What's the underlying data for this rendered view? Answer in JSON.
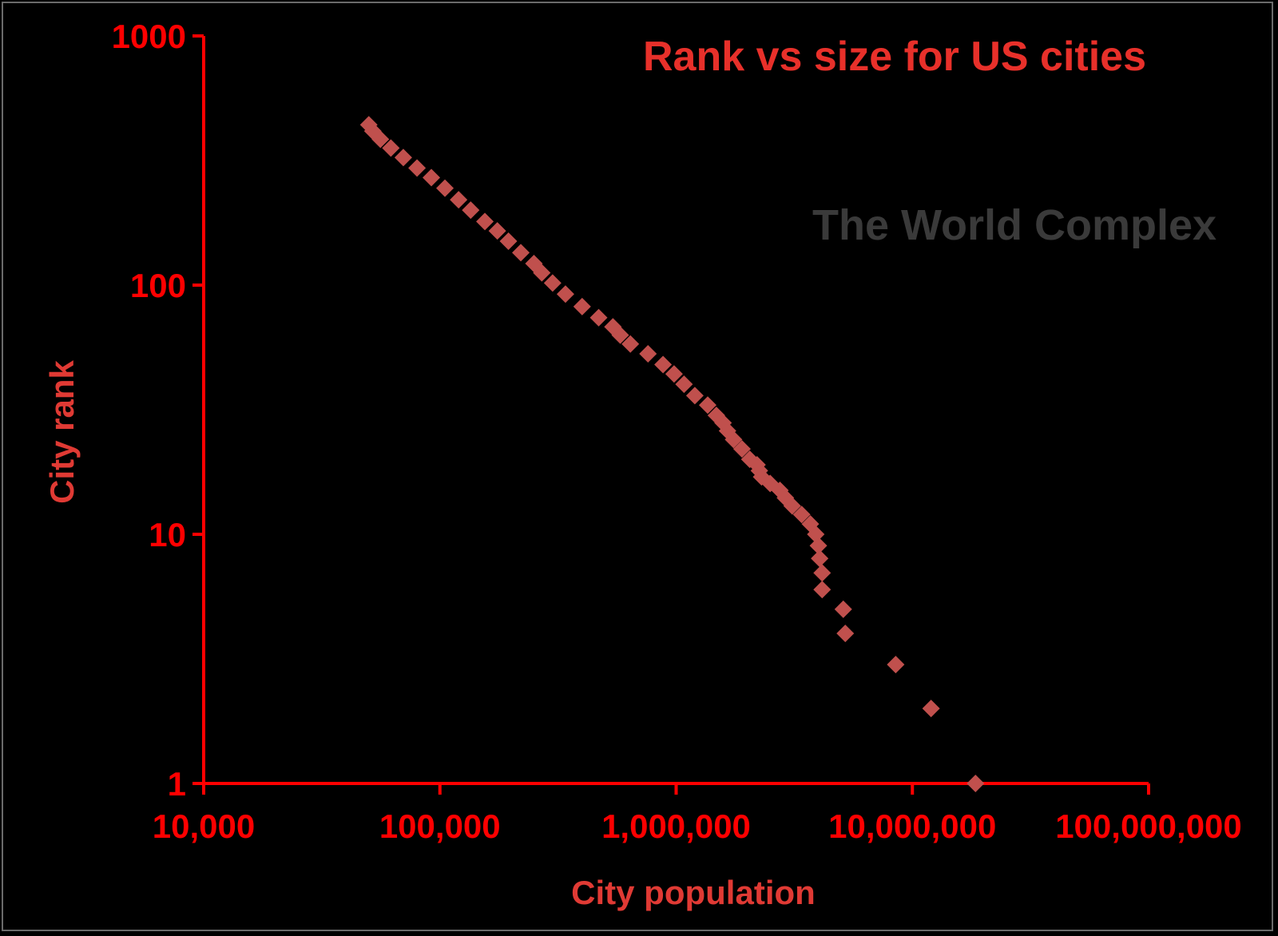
{
  "chart_data": {
    "type": "scatter",
    "title": "Rank vs size for US cities",
    "xlabel": "City population",
    "ylabel": "City rank",
    "watermark": "The World Complex",
    "x_scale": "log",
    "y_scale": "log",
    "xlim": [
      10000,
      100000000
    ],
    "ylim": [
      1,
      1000
    ],
    "x_ticks": [
      {
        "value": 10000,
        "label": "10,000"
      },
      {
        "value": 100000,
        "label": "100,000"
      },
      {
        "value": 1000000,
        "label": "1,000,000"
      },
      {
        "value": 10000000,
        "label": "10,000,000"
      },
      {
        "value": 100000000,
        "label": "100,000,000"
      }
    ],
    "y_ticks": [
      {
        "value": 1,
        "label": "1"
      },
      {
        "value": 10,
        "label": "10"
      },
      {
        "value": 100,
        "label": "100"
      },
      {
        "value": 1000,
        "label": "1000"
      }
    ],
    "grid": false,
    "legend": "none",
    "colors": {
      "marker": "#c0504d",
      "axis": "#ff0000",
      "title": "#e8302a",
      "background": "#000000",
      "watermark": "#3a3a3a"
    },
    "marker": "diamond",
    "series": [
      {
        "points": [
          [
            18500000,
            1
          ],
          [
            12000000,
            2
          ],
          [
            8500000,
            3
          ],
          [
            5200000,
            4
          ],
          [
            5100000,
            5
          ],
          [
            4150000,
            6
          ],
          [
            4150000,
            7
          ],
          [
            4050000,
            8
          ],
          [
            4000000,
            9
          ],
          [
            3900000,
            10
          ],
          [
            3700000,
            11
          ],
          [
            3400000,
            12
          ],
          [
            3100000,
            13
          ],
          [
            2900000,
            14
          ],
          [
            2750000,
            15
          ],
          [
            2500000,
            16
          ],
          [
            2300000,
            17
          ],
          [
            2250000,
            18
          ],
          [
            2200000,
            19
          ],
          [
            2050000,
            20
          ],
          [
            1900000,
            22
          ],
          [
            1750000,
            24
          ],
          [
            1650000,
            26
          ],
          [
            1580000,
            28
          ],
          [
            1480000,
            30
          ],
          [
            1360000,
            33
          ],
          [
            1200000,
            36
          ],
          [
            1080000,
            40
          ],
          [
            980000,
            44
          ],
          [
            880000,
            48
          ],
          [
            760000,
            53
          ],
          [
            640000,
            58
          ],
          [
            580000,
            63
          ],
          [
            540000,
            68
          ],
          [
            470000,
            74
          ],
          [
            400000,
            82
          ],
          [
            340000,
            92
          ],
          [
            300000,
            102
          ],
          [
            270000,
            112
          ],
          [
            250000,
            122
          ],
          [
            220000,
            135
          ],
          [
            195000,
            150
          ],
          [
            175000,
            165
          ],
          [
            155000,
            180
          ],
          [
            135000,
            200
          ],
          [
            120000,
            220
          ],
          [
            105000,
            245
          ],
          [
            92000,
            270
          ],
          [
            80000,
            295
          ],
          [
            70000,
            325
          ],
          [
            62000,
            355
          ],
          [
            56000,
            385
          ],
          [
            52000,
            415
          ],
          [
            50000,
            440
          ]
        ]
      }
    ]
  }
}
